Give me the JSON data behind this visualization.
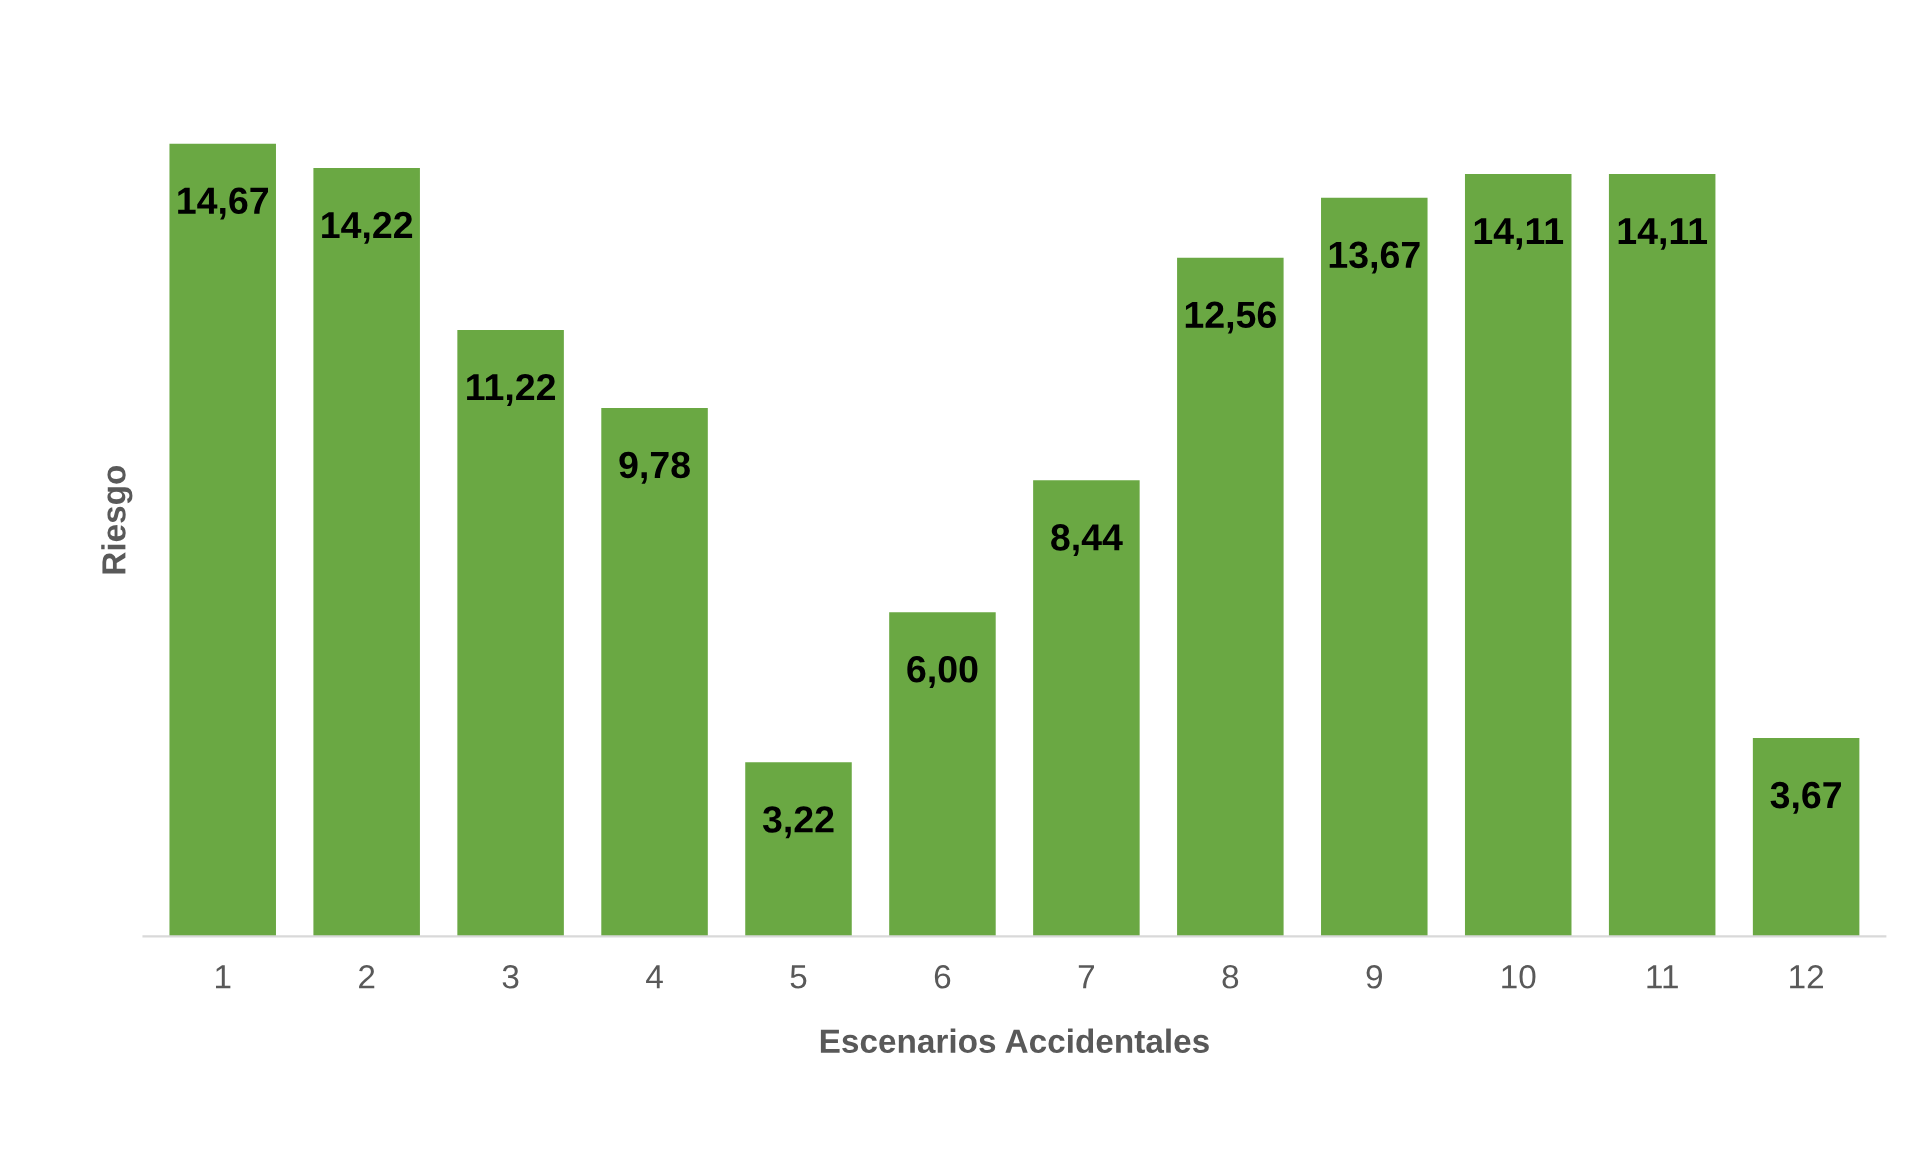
{
  "chart_data": {
    "type": "bar",
    "xlabel": "Escenarios Accidentales",
    "ylabel": "Riesgo",
    "categories": [
      "1",
      "2",
      "3",
      "4",
      "5",
      "6",
      "7",
      "8",
      "9",
      "10",
      "11",
      "12"
    ],
    "values": [
      14.67,
      14.22,
      11.22,
      9.78,
      3.22,
      6.0,
      8.44,
      12.56,
      13.67,
      14.11,
      14.11,
      3.67
    ],
    "value_labels": [
      "14,67",
      "14,22",
      "11,22",
      "9,78",
      "3,22",
      "6,00",
      "8,44",
      "12,56",
      "13,67",
      "14,11",
      "14,11",
      "3,67"
    ],
    "color": "#6aa843"
  }
}
